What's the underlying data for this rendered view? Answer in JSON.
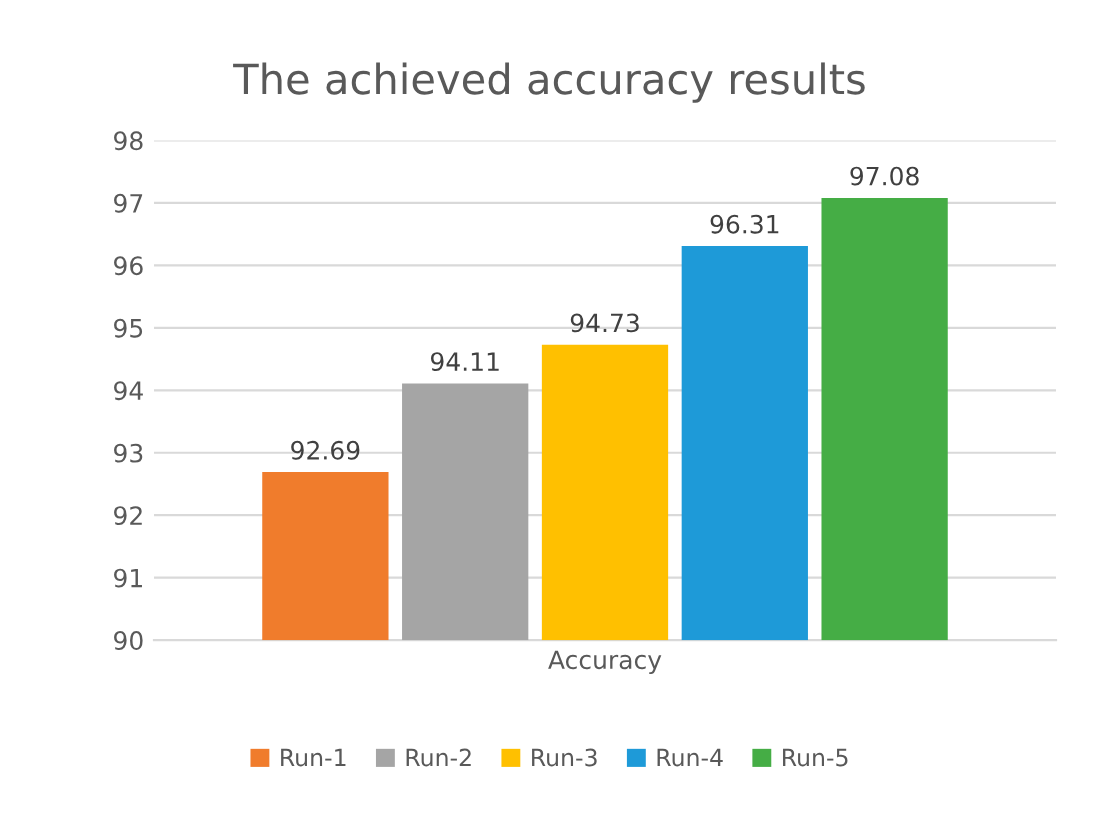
{
  "chart_data": {
    "type": "bar",
    "title": "The achieved accuracy results",
    "categories": [
      "Accuracy"
    ],
    "series": [
      {
        "name": "Run-1",
        "color": "#f07c2c",
        "values": [
          92.69
        ]
      },
      {
        "name": "Run-2",
        "color": "#a5a5a5",
        "values": [
          94.11
        ]
      },
      {
        "name": "Run-3",
        "color": "#ffc000",
        "values": [
          94.73
        ]
      },
      {
        "name": "Run-4",
        "color": "#1e9ad8",
        "values": [
          96.31
        ]
      },
      {
        "name": "Run-5",
        "color": "#45ad45",
        "values": [
          97.08
        ]
      }
    ],
    "ylim": [
      90,
      98
    ],
    "yticks": [
      90,
      91,
      92,
      93,
      94,
      95,
      96,
      97,
      98
    ],
    "grid": "y",
    "legend": "bottom",
    "data_labels": true
  }
}
